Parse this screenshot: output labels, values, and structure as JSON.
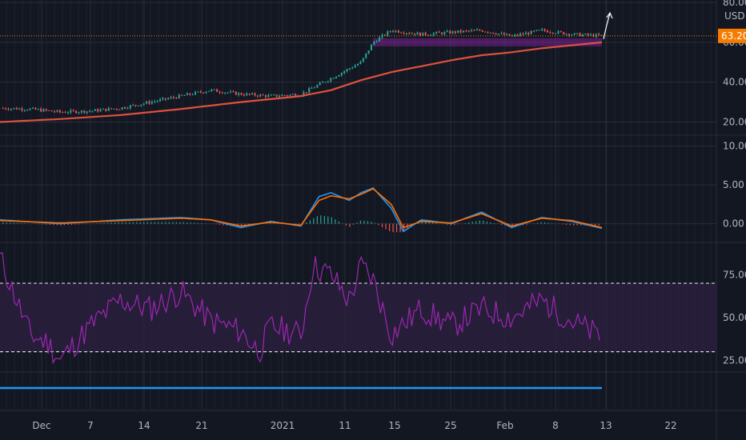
{
  "colors": {
    "background": "#131722",
    "grid": "#2a2e39",
    "candle_up": "#26a69a",
    "candle_down": "#ef5350",
    "ma_line": "#e0513f",
    "macd_line": "#2196f3",
    "signal_line": "#ff6d00",
    "rsi_line": "#9c27b0",
    "rsi_band": "#2a1f3d",
    "price_marker": "#f57c00",
    "zone": "#8e24aa",
    "bottom_line": "#2196f3"
  },
  "chart_data": [
    {
      "type": "candlestick",
      "panel": "price",
      "currency": "USD",
      "last_price": "63.20",
      "y_ticks": [
        "80.00",
        "60.00",
        "40.00",
        "20.00"
      ],
      "ylim": [
        15,
        80
      ],
      "series": [
        {
          "kind": "close",
          "x": [
            0,
            5,
            10,
            15,
            20,
            25,
            30,
            35,
            40,
            45,
            50,
            55,
            60,
            62,
            65,
            70,
            75,
            80,
            85,
            90,
            95,
            100
          ],
          "values": [
            27,
            26.5,
            25,
            25.5,
            27,
            30,
            33,
            36,
            34,
            33,
            34,
            42,
            50,
            60,
            66,
            64,
            65,
            66,
            63,
            66,
            64,
            63.2
          ]
        },
        {
          "kind": "moving_average",
          "x": [
            0,
            10,
            20,
            30,
            40,
            50,
            55,
            60,
            65,
            70,
            75,
            80,
            85,
            90,
            95,
            100
          ],
          "values": [
            20,
            21.5,
            23.5,
            26.5,
            30,
            33,
            36,
            41,
            45,
            48,
            51,
            53.5,
            55,
            57,
            58.5,
            60
          ]
        }
      ],
      "horizontal_zone": [
        58,
        62
      ]
    },
    {
      "type": "line",
      "panel": "macd",
      "y_ticks": [
        "10.00",
        "5.00",
        "0.00"
      ],
      "ylim": [
        -2,
        11
      ],
      "series": [
        {
          "kind": "macd",
          "x": [
            0,
            10,
            20,
            30,
            35,
            40,
            45,
            50,
            53,
            55,
            58,
            60,
            62,
            65,
            67,
            70,
            75,
            80,
            85,
            90,
            95,
            100
          ],
          "values": [
            0.5,
            0,
            0.5,
            0.8,
            0.5,
            -0.5,
            0.3,
            -0.3,
            3.5,
            4,
            3,
            4,
            4.6,
            2,
            -1,
            0.5,
            0,
            1.5,
            -0.5,
            0.8,
            0.3,
            -0.6
          ]
        },
        {
          "kind": "signal",
          "x": [
            0,
            10,
            20,
            30,
            35,
            40,
            45,
            50,
            53,
            55,
            58,
            60,
            62,
            65,
            67,
            70,
            75,
            80,
            85,
            90,
            95,
            100
          ],
          "values": [
            0.4,
            0.1,
            0.4,
            0.7,
            0.5,
            -0.3,
            0.2,
            -0.2,
            3,
            3.6,
            3.2,
            3.8,
            4.5,
            2.5,
            -0.5,
            0.3,
            0.1,
            1.3,
            -0.3,
            0.7,
            0.4,
            -0.5
          ]
        }
      ]
    },
    {
      "type": "line",
      "panel": "rsi",
      "y_ticks": [
        "75.00",
        "50.00",
        "25.00"
      ],
      "ylim": [
        20,
        92
      ],
      "band": [
        30,
        70
      ],
      "series": [
        {
          "kind": "rsi",
          "x": [
            0,
            5,
            8,
            10,
            15,
            20,
            25,
            30,
            35,
            40,
            43,
            45,
            50,
            52,
            55,
            58,
            60,
            62,
            65,
            70,
            75,
            80,
            85,
            90,
            95,
            100
          ],
          "values": [
            85,
            40,
            35,
            25,
            45,
            60,
            55,
            65,
            48,
            42,
            30,
            45,
            40,
            80,
            75,
            60,
            80,
            72,
            40,
            55,
            45,
            55,
            50,
            60,
            48,
            38
          ]
        }
      ]
    }
  ],
  "x_axis": {
    "labels": [
      "Dec",
      "7",
      "14",
      "21",
      "2021",
      "11",
      "15",
      "25",
      "Feb",
      "8",
      "13",
      "22"
    ],
    "positions": [
      52,
      113,
      180,
      252,
      353,
      431,
      493,
      563,
      631,
      694,
      757,
      838
    ]
  },
  "bottom_panel": {
    "label": ""
  }
}
